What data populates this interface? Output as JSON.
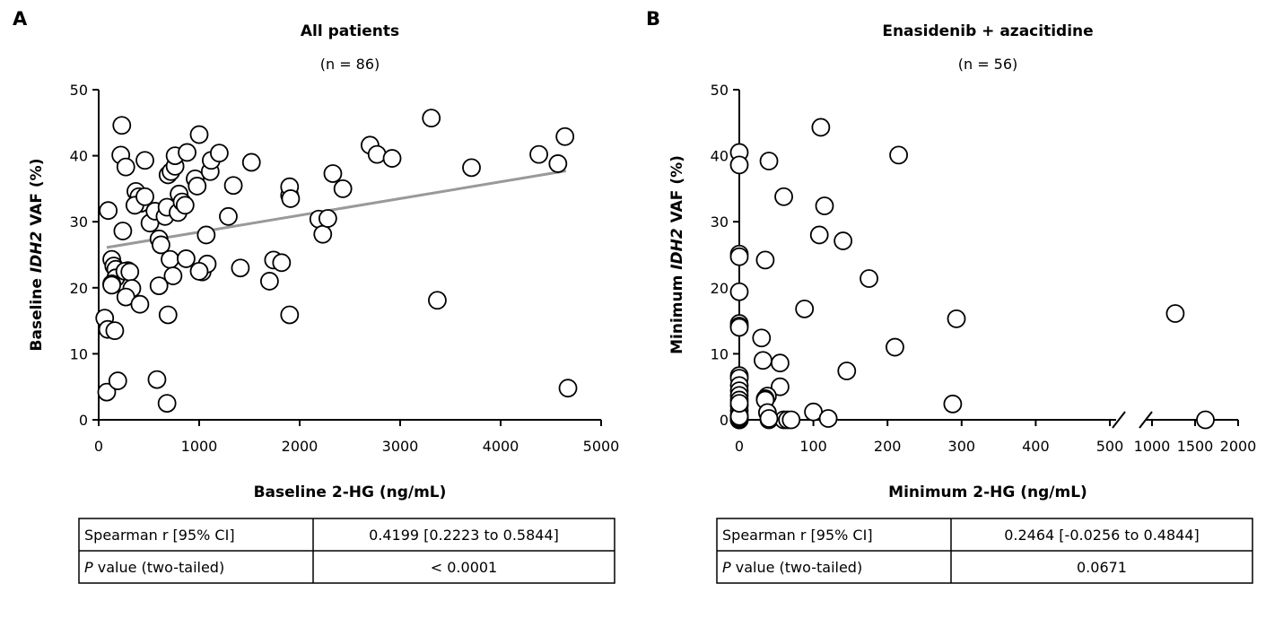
{
  "panels": [
    {
      "letter": "A",
      "title": "All patients",
      "subtitle": "(n = 86)",
      "xlabel": "Baseline 2-HG (ng/mL)",
      "ylabel_pre": "Baseline ",
      "ylabel_italic": "IDH2",
      "ylabel_post": " VAF (%)",
      "x_ticks": [
        "0",
        "1000",
        "2000",
        "3000",
        "4000",
        "5000"
      ],
      "y_ticks": [
        "0",
        "10",
        "20",
        "30",
        "40",
        "50"
      ],
      "table": {
        "row1_label": "Spearman r [95% CI]",
        "row1_value": "0.4199 [0.2223 to 0.5844]",
        "row2_label_italic": "P",
        "row2_label_rest": " value (two-tailed)",
        "row2_value": "< 0.0001"
      }
    },
    {
      "letter": "B",
      "title": "Enasidenib + azacitidine",
      "subtitle": "(n = 56)",
      "xlabel": "Minimum 2-HG (ng/mL)",
      "ylabel_pre": "Minimum ",
      "ylabel_italic": "IDH2",
      "ylabel_post": " VAF (%)",
      "x_ticks": [
        "0",
        "100",
        "200",
        "300",
        "400",
        "500",
        "1000",
        "1500",
        "2000"
      ],
      "y_ticks": [
        "0",
        "10",
        "20",
        "30",
        "40",
        "50"
      ],
      "table": {
        "row1_label": "Spearman r [95% CI]",
        "row1_value": "0.2464 [-0.0256 to 0.4844]",
        "row2_label_italic": "P",
        "row2_label_rest": " value (two-tailed)",
        "row2_value": "0.0671"
      }
    }
  ],
  "chart_data": [
    {
      "type": "scatter",
      "title": "All patients",
      "subtitle": "(n = 86)",
      "xlabel": "Baseline 2-HG (ng/mL)",
      "ylabel": "Baseline IDH2 VAF (%)",
      "xlim": [
        0,
        5000
      ],
      "ylim": [
        0,
        50
      ],
      "trendline": {
        "x": [
          80,
          4650
        ],
        "y": [
          26.1,
          37.7
        ],
        "color": "#999999"
      },
      "points": [
        [
          80,
          4.2
        ],
        [
          60,
          15.4
        ],
        [
          90,
          13.7
        ],
        [
          160,
          13.5
        ],
        [
          190,
          5.9
        ],
        [
          95,
          31.7
        ],
        [
          230,
          44.6
        ],
        [
          220,
          40.1
        ],
        [
          270,
          38.3
        ],
        [
          240,
          28.6
        ],
        [
          130,
          24.3
        ],
        [
          150,
          23.3
        ],
        [
          170,
          22.8
        ],
        [
          170,
          21.5
        ],
        [
          130,
          20.6
        ],
        [
          130,
          20.4
        ],
        [
          290,
          22.6
        ],
        [
          260,
          22.5
        ],
        [
          310,
          22.4
        ],
        [
          330,
          19.9
        ],
        [
          270,
          18.6
        ],
        [
          410,
          17.5
        ],
        [
          370,
          34.6
        ],
        [
          400,
          33.8
        ],
        [
          420,
          32.8
        ],
        [
          360,
          32.5
        ],
        [
          460,
          33.8
        ],
        [
          460,
          39.3
        ],
        [
          510,
          29.8
        ],
        [
          560,
          31.6
        ],
        [
          600,
          27.4
        ],
        [
          620,
          26.5
        ],
        [
          600,
          20.3
        ],
        [
          580,
          6.1
        ],
        [
          680,
          2.5
        ],
        [
          690,
          15.9
        ],
        [
          710,
          24.3
        ],
        [
          740,
          21.8
        ],
        [
          660,
          30.8
        ],
        [
          680,
          32.2
        ],
        [
          690,
          37.1
        ],
        [
          720,
          37.6
        ],
        [
          760,
          38.4
        ],
        [
          760,
          40.0
        ],
        [
          800,
          34.2
        ],
        [
          790,
          31.4
        ],
        [
          830,
          33.0
        ],
        [
          860,
          32.5
        ],
        [
          870,
          24.4
        ],
        [
          880,
          40.5
        ],
        [
          960,
          36.5
        ],
        [
          980,
          35.4
        ],
        [
          1000,
          43.2
        ],
        [
          1030,
          22.4
        ],
        [
          1070,
          28.0
        ],
        [
          1080,
          23.6
        ],
        [
          1110,
          37.6
        ],
        [
          1120,
          39.3
        ],
        [
          1200,
          40.4
        ],
        [
          1290,
          30.8
        ],
        [
          1340,
          35.5
        ],
        [
          1410,
          23.0
        ],
        [
          1520,
          39.0
        ],
        [
          1700,
          21.0
        ],
        [
          1740,
          24.2
        ],
        [
          1820,
          23.8
        ],
        [
          1900,
          34.0
        ],
        [
          1900,
          35.3
        ],
        [
          1910,
          33.5
        ],
        [
          1900,
          15.9
        ],
        [
          2190,
          30.4
        ],
        [
          2230,
          28.1
        ],
        [
          2280,
          30.5
        ],
        [
          2330,
          37.3
        ],
        [
          2430,
          35.0
        ],
        [
          2700,
          41.6
        ],
        [
          2770,
          40.2
        ],
        [
          2920,
          39.6
        ],
        [
          3310,
          45.7
        ],
        [
          3370,
          18.1
        ],
        [
          3710,
          38.2
        ],
        [
          4380,
          40.2
        ],
        [
          4570,
          38.8
        ],
        [
          4640,
          42.9
        ],
        [
          4670,
          4.8
        ],
        [
          1000,
          22.5
        ]
      ]
    },
    {
      "type": "scatter",
      "title": "Enasidenib + azacitidine",
      "subtitle": "(n = 56)",
      "xlabel": "Minimum 2-HG (ng/mL)",
      "ylabel": "Minimum IDH2 VAF (%)",
      "x_axis_break": {
        "segment1": [
          0,
          500
        ],
        "segment2": [
          1000,
          2000
        ]
      },
      "ylim": [
        0,
        50
      ],
      "points": [
        [
          0,
          40.5
        ],
        [
          0,
          38.6
        ],
        [
          0,
          25.1
        ],
        [
          0,
          24.7
        ],
        [
          0,
          19.4
        ],
        [
          0,
          14.6
        ],
        [
          0,
          14.2
        ],
        [
          0,
          14.0
        ],
        [
          0,
          6.7
        ],
        [
          0,
          6.3
        ],
        [
          0,
          5.2
        ],
        [
          0,
          4.4
        ],
        [
          0,
          3.7
        ],
        [
          0,
          3.0
        ],
        [
          0,
          2.1
        ],
        [
          0,
          1.4
        ],
        [
          0,
          0.7
        ],
        [
          0,
          0.2
        ],
        [
          0,
          0.0
        ],
        [
          0,
          0.0
        ],
        [
          0,
          0.0
        ],
        [
          40,
          39.2
        ],
        [
          60,
          33.8
        ],
        [
          35,
          24.2
        ],
        [
          30,
          12.4
        ],
        [
          32,
          9.0
        ],
        [
          55,
          8.6
        ],
        [
          55,
          5.0
        ],
        [
          38,
          3.6
        ],
        [
          35,
          3.2
        ],
        [
          35,
          3.0
        ],
        [
          38,
          1.1
        ],
        [
          40,
          0.0
        ],
        [
          60,
          0.0
        ],
        [
          65,
          0.0
        ],
        [
          70,
          0.0
        ],
        [
          110,
          44.3
        ],
        [
          115,
          32.4
        ],
        [
          108,
          28.0
        ],
        [
          140,
          27.1
        ],
        [
          175,
          21.4
        ],
        [
          88,
          16.8
        ],
        [
          210,
          11.0
        ],
        [
          145,
          7.4
        ],
        [
          100,
          1.2
        ],
        [
          120,
          0.2
        ],
        [
          215,
          40.1
        ],
        [
          293,
          15.3
        ],
        [
          288,
          2.4
        ],
        [
          1270,
          16.1
        ],
        [
          1620,
          0.0
        ],
        [
          40,
          0.2
        ],
        [
          0,
          0.1
        ],
        [
          0,
          0.3
        ],
        [
          0,
          0.5
        ],
        [
          0,
          2.5
        ]
      ]
    }
  ]
}
